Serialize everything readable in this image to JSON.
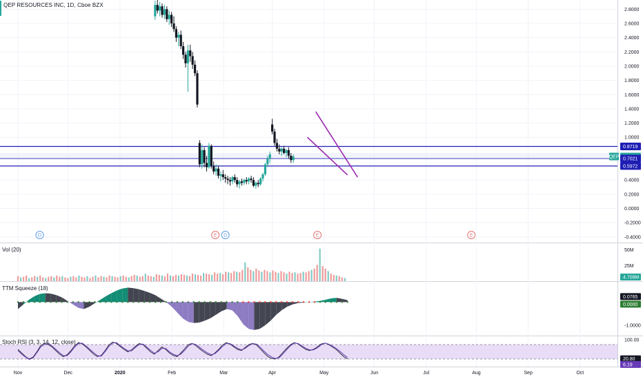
{
  "title": "QEP RESOURCES INC, 1D, Cboe BZX",
  "panes": {
    "volume_label": "Vol (20)",
    "squeeze_label": "TTM Squeeze (18)",
    "stoch_label": "Stoch RSI (3, 3, 14, 12, close)"
  },
  "colors": {
    "up": "#26a69a",
    "down": "#131722",
    "vol_up": "#80cbc4",
    "vol_down": "#ef9a9a",
    "hline": "#1e1eb4",
    "trend": "#9c27b0",
    "squeeze_up": "#138d75",
    "squeeze_down": "#8e7cc3",
    "squeeze_neutral": "#434651",
    "stoch_fill": "#e8dcf7"
  },
  "chart_data": [
    {
      "type": "candlestick",
      "x_axis": [
        "Nov",
        "Dec",
        "2020",
        "Feb",
        "Mar",
        "Apr",
        "May",
        "Jun",
        "Jul",
        "Aug",
        "Sep",
        "Oct"
      ],
      "y_ticks": [
        "2.8000",
        "2.6000",
        "2.4000",
        "2.2000",
        "2.0000",
        "1.8000",
        "1.6000",
        "1.4000",
        "1.2000",
        "1.0000",
        "0.4000",
        "0.2000",
        "0.0000",
        "-0.2000",
        "-0.4000"
      ],
      "ylim": [
        -0.45,
        2.9
      ],
      "symbol": "QEP",
      "price_tags": [
        {
          "value": 0.8719,
          "label": "0.8719",
          "color": "#1e1eb4"
        },
        {
          "value": 0.7298,
          "label": "0.7298",
          "color": "#26a69a"
        },
        {
          "value": 0.7021,
          "label": "0.7021",
          "color": "#1e1eb4"
        },
        {
          "value": 0.5972,
          "label": "0.5972",
          "color": "#1e1eb4"
        }
      ],
      "horizontal_lines": [
        0.8719,
        0.7021,
        0.5972
      ],
      "trend_lines": [
        {
          "from": [
            "Apr 27",
            1.36
          ],
          "to": [
            "May 21",
            0.44
          ]
        },
        {
          "from": [
            "Apr 22",
            1.0
          ],
          "to": [
            "May 15",
            0.47
          ]
        }
      ],
      "event_markers": [
        {
          "date": "Nov 14",
          "label": "D"
        },
        {
          "date": "Feb 27",
          "label": "E"
        },
        {
          "date": "Mar 2",
          "label": "D"
        },
        {
          "date": "Apr 28",
          "label": "E"
        },
        {
          "date": "Jul 28",
          "label": "E"
        }
      ],
      "candles_start": "Jan 22",
      "candles": [
        [
          2.7,
          2.92,
          2.65,
          2.86
        ],
        [
          2.86,
          2.95,
          2.74,
          2.78
        ],
        [
          2.78,
          2.9,
          2.7,
          2.84
        ],
        [
          2.84,
          2.88,
          2.68,
          2.72
        ],
        [
          2.72,
          2.86,
          2.66,
          2.8
        ],
        [
          2.8,
          2.84,
          2.62,
          2.66
        ],
        [
          2.66,
          2.78,
          2.58,
          2.72
        ],
        [
          2.72,
          2.76,
          2.55,
          2.6
        ],
        [
          2.6,
          2.7,
          2.48,
          2.52
        ],
        [
          2.52,
          2.56,
          2.34,
          2.4
        ],
        [
          2.4,
          2.48,
          2.28,
          2.44
        ],
        [
          2.44,
          2.5,
          2.24,
          2.28
        ],
        [
          2.28,
          2.34,
          2.1,
          2.16
        ],
        [
          2.16,
          2.2,
          1.98,
          2.04
        ],
        [
          2.04,
          2.3,
          1.64,
          2.22
        ],
        [
          2.22,
          2.3,
          2.06,
          2.14
        ],
        [
          2.14,
          2.2,
          1.96,
          2.02
        ],
        [
          2.02,
          2.08,
          1.86,
          1.9
        ],
        [
          1.9,
          1.94,
          1.42,
          1.46
        ],
        [
          0.92,
          0.96,
          0.58,
          0.62
        ],
        [
          0.62,
          0.9,
          0.56,
          0.82
        ],
        [
          0.82,
          0.86,
          0.58,
          0.64
        ],
        [
          0.64,
          0.74,
          0.52,
          0.58
        ],
        [
          0.58,
          0.92,
          0.56,
          0.88
        ],
        [
          0.88,
          0.9,
          0.56,
          0.6
        ],
        [
          0.6,
          0.66,
          0.48,
          0.52
        ],
        [
          0.52,
          0.62,
          0.46,
          0.56
        ],
        [
          0.56,
          0.6,
          0.42,
          0.46
        ],
        [
          0.46,
          0.52,
          0.38,
          0.48
        ],
        [
          0.48,
          0.54,
          0.4,
          0.44
        ],
        [
          0.44,
          0.48,
          0.36,
          0.42
        ],
        [
          0.42,
          0.46,
          0.34,
          0.4
        ],
        [
          0.4,
          0.44,
          0.32,
          0.38
        ],
        [
          0.38,
          0.46,
          0.34,
          0.44
        ],
        [
          0.44,
          0.48,
          0.36,
          0.4
        ],
        [
          0.4,
          0.44,
          0.3,
          0.34
        ],
        [
          0.34,
          0.4,
          0.28,
          0.38
        ],
        [
          0.38,
          0.42,
          0.32,
          0.36
        ],
        [
          0.36,
          0.42,
          0.33,
          0.4
        ],
        [
          0.4,
          0.44,
          0.34,
          0.38
        ],
        [
          0.38,
          0.44,
          0.34,
          0.42
        ],
        [
          0.42,
          0.46,
          0.36,
          0.4
        ],
        [
          0.4,
          0.44,
          0.3,
          0.32
        ],
        [
          0.32,
          0.38,
          0.28,
          0.36
        ],
        [
          0.36,
          0.4,
          0.3,
          0.34
        ],
        [
          0.34,
          0.44,
          0.32,
          0.42
        ],
        [
          0.42,
          0.5,
          0.38,
          0.48
        ],
        [
          0.48,
          0.64,
          0.46,
          0.62
        ],
        [
          0.62,
          0.74,
          0.58,
          0.7
        ],
        [
          0.7,
          0.8,
          0.64,
          0.76
        ],
        [
          1.18,
          1.26,
          1.04,
          1.08
        ],
        [
          1.08,
          1.12,
          0.88,
          0.92
        ],
        [
          0.92,
          0.98,
          0.8,
          0.84
        ],
        [
          0.84,
          0.9,
          0.76,
          0.8
        ],
        [
          0.8,
          0.86,
          0.74,
          0.84
        ],
        [
          0.84,
          0.88,
          0.76,
          0.78
        ],
        [
          0.78,
          0.84,
          0.72,
          0.82
        ],
        [
          0.82,
          0.86,
          0.7,
          0.74
        ],
        [
          0.74,
          0.78,
          0.64,
          0.68
        ],
        [
          0.68,
          0.76,
          0.64,
          0.73
        ]
      ]
    },
    {
      "type": "bar",
      "name": "Vol (20)",
      "y_ticks": [
        "50M",
        "25M"
      ],
      "ylim": [
        0,
        55
      ],
      "last_value_label": "4.709M",
      "values": [
        8,
        6,
        7,
        9,
        5,
        6,
        8,
        7,
        9,
        6,
        5,
        7,
        8,
        6,
        9,
        7,
        8,
        6,
        5,
        7,
        8,
        6,
        9,
        7,
        6,
        8,
        5,
        7,
        9,
        6,
        8,
        7,
        6,
        9,
        8,
        7,
        6,
        8,
        9,
        7,
        6,
        8,
        10,
        9,
        7,
        8,
        12,
        9,
        8,
        7,
        11,
        10,
        9,
        8,
        12,
        9,
        8,
        10,
        9,
        11,
        10,
        9,
        8,
        12,
        11,
        10,
        9,
        13,
        12,
        11,
        10,
        14,
        12,
        13,
        11,
        15,
        14,
        13,
        16,
        15,
        14,
        18,
        30,
        22,
        18,
        16,
        20,
        17,
        15,
        18,
        16,
        14,
        17,
        15,
        13,
        16,
        14,
        12,
        15,
        13,
        14,
        12,
        13,
        15,
        14,
        16,
        18,
        20,
        26,
        52,
        24,
        20,
        16,
        12,
        10,
        9,
        8,
        6,
        5
      ],
      "colors_up_down": "alternating"
    },
    {
      "type": "area",
      "name": "TTM Squeeze (18)",
      "y_ticks": [
        "-1.0000"
      ],
      "last_value_labels": [
        "0.0765",
        "0.0000"
      ],
      "ylim": [
        -1.35,
        0.75
      ],
      "values": [
        -0.3,
        -0.1,
        0.1,
        0.25,
        0.35,
        0.38,
        0.36,
        0.3,
        0.2,
        0.05,
        -0.1,
        -0.25,
        -0.3,
        -0.2,
        -0.05,
        0.1,
        0.25,
        0.38,
        0.5,
        0.58,
        0.62,
        0.6,
        0.55,
        0.48,
        0.4,
        0.3,
        0.15,
        0.0,
        -0.2,
        -0.45,
        -0.7,
        -0.85,
        -0.9,
        -0.88,
        -0.8,
        -0.7,
        -0.55,
        -0.4,
        -0.3,
        -0.35,
        -0.6,
        -0.95,
        -1.15,
        -1.2,
        -1.15,
        -1.0,
        -0.8,
        -0.55,
        -0.35,
        -0.2,
        -0.1,
        -0.04,
        -0.02,
        0.0,
        0.02,
        0.05,
        0.1,
        0.16,
        0.18,
        0.14,
        0.08
      ]
    },
    {
      "type": "line",
      "name": "Stoch RSI (3, 3, 14, 12, close)",
      "y_ticks": [
        "100.00"
      ],
      "last_value_labels": [
        "20.80",
        "6.19"
      ],
      "ylim": [
        0,
        100
      ],
      "series": [
        {
          "values": [
            60,
            45,
            30,
            20,
            28,
            50,
            75,
            85,
            80,
            70,
            55,
            40,
            30,
            38,
            55,
            75,
            88,
            82,
            70,
            55,
            40,
            30,
            35,
            55,
            78,
            90,
            85,
            72,
            60,
            50,
            58,
            72,
            84,
            80,
            65,
            50,
            40,
            55,
            70,
            60,
            45,
            35,
            30,
            45,
            62,
            80,
            85,
            75,
            62,
            50,
            40,
            34,
            45,
            60,
            78,
            88,
            82,
            70,
            60,
            55,
            68,
            80,
            85,
            78,
            62,
            45,
            30,
            22,
            20,
            30,
            48,
            65,
            80,
            88,
            82,
            70,
            60,
            55,
            60,
            70,
            82,
            86,
            80,
            70,
            60,
            45,
            30,
            20
          ]
        },
        {
          "values": [
            55,
            40,
            28,
            18,
            25,
            46,
            70,
            80,
            84,
            74,
            60,
            46,
            34,
            34,
            50,
            70,
            84,
            86,
            74,
            60,
            46,
            34,
            32,
            50,
            72,
            86,
            88,
            76,
            64,
            54,
            54,
            68,
            80,
            82,
            70,
            56,
            44,
            50,
            64,
            64,
            50,
            40,
            34,
            40,
            56,
            74,
            84,
            80,
            68,
            56,
            46,
            38,
            42,
            56,
            72,
            84,
            84,
            74,
            64,
            58,
            64,
            76,
            84,
            82,
            68,
            52,
            38,
            28,
            22,
            26,
            42,
            60,
            76,
            86,
            84,
            74,
            64,
            58,
            58,
            66,
            78,
            86,
            82,
            74,
            64,
            52,
            38,
            26
          ]
        }
      ]
    }
  ]
}
